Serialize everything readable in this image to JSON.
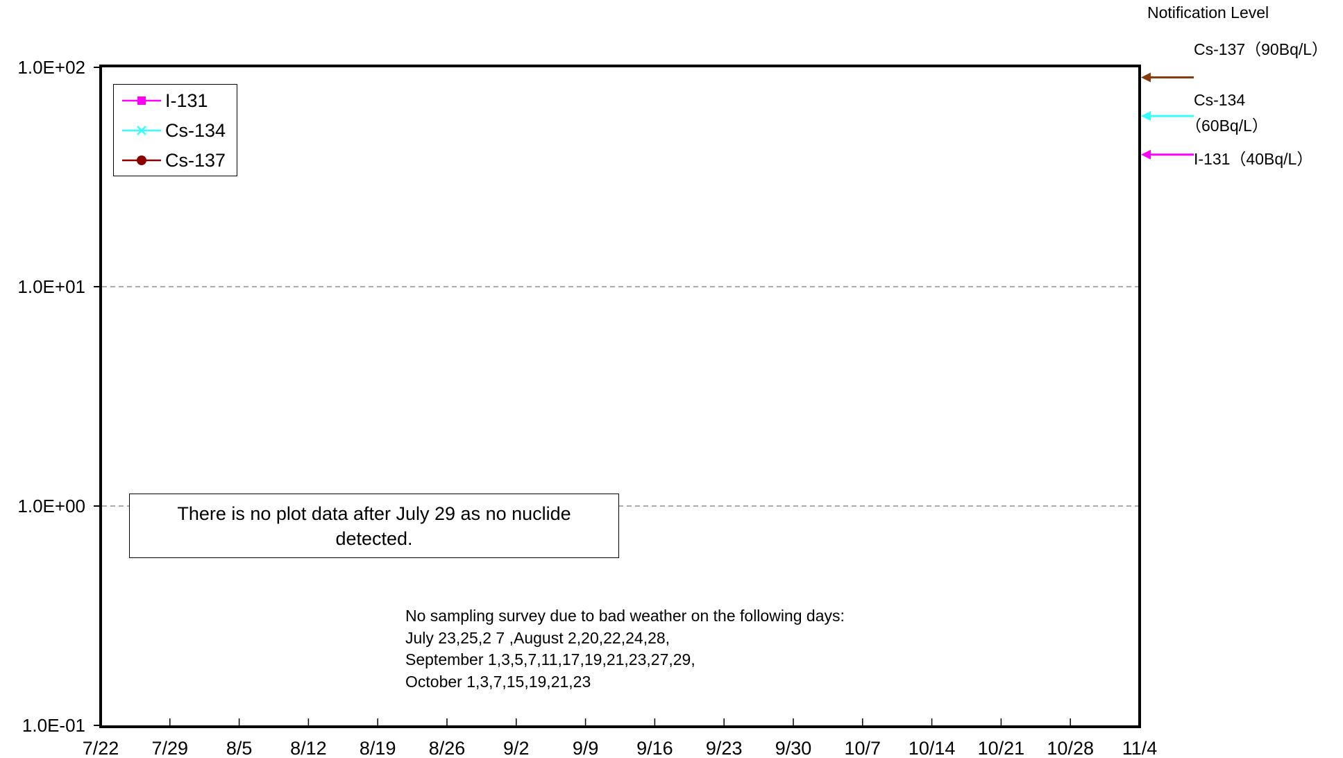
{
  "chart_data": {
    "type": "line",
    "y_scale": "log",
    "ylim": [
      0.1,
      100
    ],
    "y_ticks": [
      "1.0E-01",
      "1.0E+00",
      "1.0E+01",
      "1.0E+02"
    ],
    "y_tick_values": [
      0.1,
      1,
      10,
      100
    ],
    "x_ticks": [
      "7/22",
      "7/29",
      "8/5",
      "8/12",
      "8/19",
      "8/26",
      "9/2",
      "9/9",
      "9/16",
      "9/23",
      "9/30",
      "10/7",
      "10/14",
      "10/21",
      "10/28",
      "11/4"
    ],
    "grid": "dashed horizontal lines at 1.0E+00 and 1.0E+01",
    "legend_placement": "top-left",
    "series": [
      {
        "name": "I-131",
        "color": "#ff00ff",
        "marker": "square",
        "values": []
      },
      {
        "name": "Cs-134",
        "color": "#33ffff",
        "marker": "x",
        "values": []
      },
      {
        "name": "Cs-137",
        "color": "#8b0000",
        "marker": "circle",
        "values": []
      }
    ],
    "notification_level": {
      "title": "Notification Level",
      "items": [
        {
          "label": "Cs-137（90Bq/L）",
          "value": 90,
          "color": "#8b3a0a"
        },
        {
          "label_line1": "Cs-134",
          "label_line2": "（60Bq/L）",
          "value": 60,
          "color": "#33ffff"
        },
        {
          "label": "I-131（40Bq/L）",
          "value": 40,
          "color": "#ff00ff"
        }
      ]
    },
    "annotations": {
      "no_data_note": "There is no plot data after July 29 as no nuclide detected.",
      "survey_note": [
        "No sampling survey due to bad weather on the following days:",
        "July 23,25,2 7 ,August 2,20,22,24,28,",
        "September 1,3,5,7,11,17,19,21,23,27,29,",
        "October 1,3,7,15,19,21,23"
      ]
    }
  }
}
